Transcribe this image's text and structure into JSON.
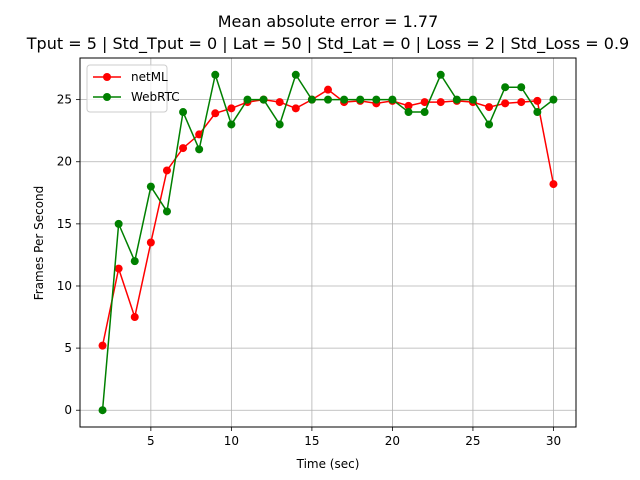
{
  "chart_data": {
    "type": "line",
    "title": "Mean absolute error = 1.77",
    "subtitle": "Tput = 5 | Std_Tput = 0 | Lat = 50 | Std_Lat = 0 | Loss = 2 | Std_Loss = 0.9",
    "xlabel": "Time (sec)",
    "ylabel": "Frames Per Second",
    "xlim": [
      0.6,
      31.4
    ],
    "ylim": [
      -1.35,
      28.35
    ],
    "xticks": [
      5,
      10,
      15,
      20,
      25,
      30
    ],
    "yticks": [
      0,
      5,
      10,
      15,
      20,
      25
    ],
    "grid": true,
    "legend_position": "upper-left",
    "x": [
      2,
      3,
      4,
      5,
      6,
      7,
      8,
      9,
      10,
      11,
      12,
      13,
      14,
      15,
      16,
      17,
      18,
      19,
      20,
      21,
      22,
      23,
      24,
      25,
      26,
      27,
      28,
      29,
      30
    ],
    "series": [
      {
        "name": "netML",
        "color": "#ff0000",
        "values": [
          5.2,
          11.4,
          7.5,
          13.5,
          19.3,
          21.1,
          22.2,
          23.9,
          24.3,
          24.8,
          25.0,
          24.8,
          24.3,
          25.0,
          25.8,
          24.8,
          24.9,
          24.7,
          24.9,
          24.5,
          24.8,
          24.8,
          24.9,
          24.8,
          24.4,
          24.7,
          24.8,
          24.9,
          18.2
        ]
      },
      {
        "name": "WebRTC",
        "color": "#008000",
        "values": [
          0,
          15,
          12,
          18,
          16,
          24,
          21,
          27,
          23,
          25,
          25,
          23,
          27,
          25,
          25,
          25,
          25,
          25,
          25,
          24,
          24,
          27,
          25,
          25,
          23,
          26,
          26,
          24,
          25
        ]
      }
    ]
  }
}
